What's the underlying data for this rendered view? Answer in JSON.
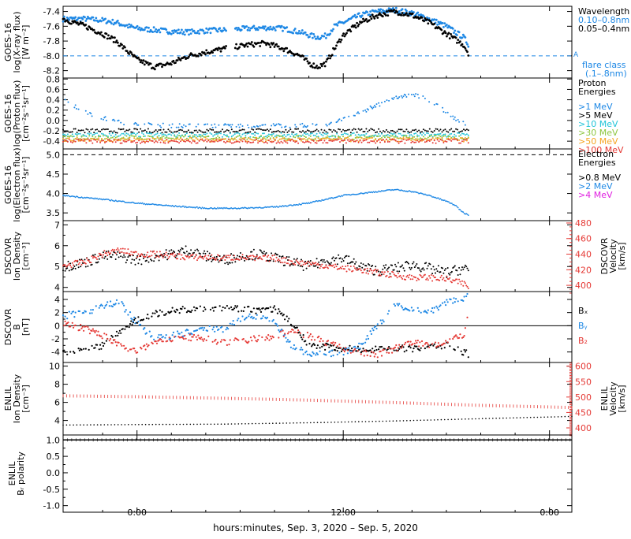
{
  "figure": {
    "xaxis_title": "hours:minutes, Sep.  3, 2020 – Sep.  5, 2020",
    "x_ticks": [
      {
        "label": "0:00",
        "hour": 0
      },
      {
        "label": "12:00",
        "hour": 12
      },
      {
        "label": "0:00",
        "hour": 24
      }
    ],
    "x_range_hours": [
      -4.3,
      25.3
    ]
  },
  "panels": [
    {
      "id": "xray",
      "ylabel": [
        "GOES-16",
        "log(X-ray flux)",
        "[W m⁻²]"
      ],
      "ylim": [
        -8.3,
        -7.33
      ],
      "yticks": [
        "-7.4",
        "-7.6",
        "-7.8",
        "-8.0",
        "-8.2"
      ],
      "yvals": [
        -7.4,
        -7.6,
        -7.8,
        -8.0,
        -8.2
      ],
      "legend_title": [
        "Wavelength"
      ],
      "legend": [
        {
          "text": "0.10–0.8nm",
          "color": "#1e88e5"
        },
        {
          "text": "0.05–0.4nm",
          "color": "#000000"
        }
      ],
      "extra_text": [
        {
          "text": "flare class",
          "color": "#1e88e5"
        },
        {
          "text": "(.1–.8nm)",
          "color": "#1e88e5"
        }
      ],
      "marker": {
        "text": "A",
        "color": "#1e88e5"
      }
    },
    {
      "id": "proton",
      "ylabel": [
        "GOES-16",
        "log(Proton flux)",
        "[cm⁻²s⁻¹sr⁻¹]"
      ],
      "ylim": [
        -0.55,
        0.82
      ],
      "yticks": [
        "0.8",
        "0.6",
        "0.4",
        "0.2",
        "0.0",
        "-0.2",
        "-0.4"
      ],
      "yvals": [
        0.8,
        0.6,
        0.4,
        0.2,
        0.0,
        -0.2,
        -0.4
      ],
      "legend_title": [
        "Proton",
        "Energies"
      ],
      "legend": [
        {
          "text": ">1 MeV",
          "color": "#1e88e5"
        },
        {
          "text": ">5 MeV",
          "color": "#000000"
        },
        {
          "text": ">10 MeV",
          "color": "#22c4d8"
        },
        {
          "text": ">30 MeV",
          "color": "#8cc63f"
        },
        {
          "text": ">50 MeV",
          "color": "#f5a623"
        },
        {
          "text": ">100 MeV",
          "color": "#e53935"
        }
      ]
    },
    {
      "id": "electron",
      "ylabel": [
        "GOES-16",
        "log(Electron flux)",
        "[cm⁻²s⁻¹sr⁻¹]"
      ],
      "ylim": [
        3.3,
        5.15
      ],
      "yticks": [
        "5.0",
        "4.5",
        "4.0",
        "3.5"
      ],
      "yvals": [
        5.0,
        4.5,
        4.0,
        3.5
      ],
      "legend_title": [
        "Electron",
        "Energies"
      ],
      "legend": [
        {
          "text": ">0.8 MeV",
          "color": "#000000"
        },
        {
          "text": ">2 MeV",
          "color": "#1e88e5"
        },
        {
          "text": ">4 MeV",
          "color": "#e020e0"
        }
      ]
    },
    {
      "id": "dscovr_density",
      "ylabel": [
        "DSCOVR",
        "Ion Density",
        "[cm⁻³]"
      ],
      "ylim": [
        3.8,
        7.2
      ],
      "yticks": [
        "7",
        "6",
        "5",
        "4"
      ],
      "yvals": [
        7,
        6,
        5,
        4
      ],
      "right_ylabel": [
        "DSCOVR",
        "Velocity",
        "[km/s]"
      ],
      "right_ylim": [
        392,
        483
      ],
      "right_yticks": [
        "480",
        "460",
        "440",
        "420",
        "400"
      ],
      "right_yvals": [
        480,
        460,
        440,
        420,
        400
      ]
    },
    {
      "id": "dscovr_b",
      "ylabel": [
        "DSCOVR",
        "B",
        "[nT]"
      ],
      "ylim": [
        -5.6,
        5.2
      ],
      "yticks": [
        "4",
        "2",
        "0",
        "-2",
        "-4"
      ],
      "yvals": [
        4,
        2,
        0,
        -2,
        -4
      ],
      "legend": [
        {
          "text": "Bₓ",
          "color": "#000000"
        },
        {
          "text": "Bᵧ",
          "color": "#1e88e5"
        },
        {
          "text": "B₂",
          "color": "#e53935"
        }
      ]
    },
    {
      "id": "enlil_density",
      "ylabel": [
        "ENLIL",
        "Ion Density",
        "[cm⁻³]"
      ],
      "ylim": [
        2.4,
        10.4
      ],
      "yticks": [
        "10",
        "8",
        "6",
        "4"
      ],
      "yvals": [
        10,
        8,
        6,
        4
      ],
      "right_ylabel": [
        "ENLIL",
        "Velocity",
        "[km/s]"
      ],
      "right_ylim": [
        377,
        612
      ],
      "right_yticks": [
        "600",
        "550",
        "500",
        "450",
        "400"
      ],
      "right_yvals": [
        600,
        550,
        500,
        450,
        400
      ]
    },
    {
      "id": "enlil_polarity",
      "ylabel": [
        "ENLIL",
        "Bᵣ polarity"
      ],
      "ylim": [
        -1.2,
        1.15
      ],
      "yticks": [
        "1.0",
        "0.5",
        "0.0",
        "-0.5",
        "-1.0"
      ],
      "yvals": [
        1.0,
        0.5,
        0.0,
        -0.5,
        -1.0
      ]
    }
  ],
  "chart_data": [
    {
      "type": "scatter",
      "panel": "xray",
      "x_unit": "hours",
      "series": [
        {
          "name": "0.10–0.8nm",
          "color": "#1e88e5",
          "x": [
            -4.3,
            -3,
            -2,
            -1.2,
            -0.5,
            0,
            1,
            2,
            3,
            4,
            5.2,
            null,
            5.7,
            6.5,
            7.5,
            8.5,
            9.5,
            10,
            10.5,
            11,
            11.5,
            12,
            13,
            14,
            15,
            16,
            17,
            18,
            19,
            19.3
          ],
          "y": [
            -7.5,
            -7.5,
            -7.52,
            -7.55,
            -7.6,
            -7.63,
            -7.65,
            -7.67,
            -7.68,
            -7.66,
            -7.65,
            null,
            -7.64,
            -7.63,
            -7.62,
            -7.63,
            -7.68,
            -7.72,
            -7.75,
            -7.73,
            -7.6,
            -7.55,
            -7.45,
            -7.4,
            -7.38,
            -7.42,
            -7.5,
            -7.6,
            -7.75,
            -7.85
          ]
        },
        {
          "name": "0.05–0.4nm",
          "color": "#000000",
          "x": [
            -4.3,
            -3,
            -2,
            -1.2,
            -0.5,
            0,
            1,
            2,
            3,
            4,
            5.2,
            null,
            5.7,
            6.5,
            7.5,
            8.5,
            9.5,
            10,
            10.5,
            11,
            11.5,
            12,
            13,
            14,
            15,
            16,
            17,
            18,
            19,
            19.3
          ],
          "y": [
            -7.5,
            -7.6,
            -7.7,
            -7.8,
            -7.95,
            -8.05,
            -8.15,
            -8.1,
            -8.0,
            -7.95,
            -7.9,
            null,
            -7.88,
            -7.85,
            -7.83,
            -7.9,
            -8.0,
            -8.1,
            -8.15,
            -8.1,
            -7.9,
            -7.72,
            -7.55,
            -7.45,
            -7.4,
            -7.45,
            -7.55,
            -7.7,
            -7.85,
            -7.97
          ]
        }
      ],
      "ref_lines": [
        {
          "y": -8.0,
          "color": "#1e88e5",
          "style": "dashed"
        }
      ]
    },
    {
      "type": "scatter",
      "panel": "proton",
      "x_unit": "hours",
      "series": [
        {
          "name": ">1 MeV",
          "color": "#1e88e5",
          "x": [
            -4.3,
            -3.5,
            -2.5,
            -1.5,
            0,
            2,
            4,
            6,
            8,
            10,
            11,
            12,
            13,
            14,
            15,
            16,
            17,
            18,
            19,
            19.3
          ],
          "y": [
            0.4,
            0.25,
            0.1,
            0.0,
            -0.08,
            -0.1,
            -0.1,
            -0.1,
            -0.1,
            -0.1,
            -0.08,
            0.05,
            0.15,
            0.3,
            0.45,
            0.5,
            0.4,
            0.15,
            -0.05,
            -0.15
          ]
        },
        {
          "name": ">5 MeV",
          "color": "#000000",
          "x": [
            -4.3,
            0,
            5,
            10,
            15,
            19.3
          ],
          "y": [
            -0.2,
            -0.2,
            -0.2,
            -0.2,
            -0.2,
            -0.2
          ]
        },
        {
          "name": ">10 MeV",
          "color": "#22c4d8",
          "x": [
            -4.3,
            0,
            5,
            10,
            15,
            19.3
          ],
          "y": [
            -0.28,
            -0.28,
            -0.28,
            -0.28,
            -0.28,
            -0.28
          ]
        },
        {
          "name": ">30 MeV",
          "color": "#8cc63f",
          "x": [
            -4.3,
            0,
            5,
            10,
            15,
            19.3
          ],
          "y": [
            -0.33,
            -0.33,
            -0.33,
            -0.33,
            -0.33,
            -0.33
          ]
        },
        {
          "name": ">50 MeV",
          "color": "#f5a623",
          "x": [
            -4.3,
            0,
            5,
            10,
            15,
            19.3
          ],
          "y": [
            -0.37,
            -0.37,
            -0.37,
            -0.37,
            -0.37,
            -0.37
          ]
        },
        {
          "name": ">100 MeV",
          "color": "#e53935",
          "x": [
            -4.3,
            0,
            5,
            10,
            15,
            19.3
          ],
          "y": [
            -0.4,
            -0.4,
            -0.4,
            -0.4,
            -0.4,
            -0.4
          ]
        }
      ]
    },
    {
      "type": "scatter",
      "panel": "electron",
      "x_unit": "hours",
      "series": [
        {
          "name": ">2 MeV",
          "color": "#1e88e5",
          "x": [
            -4.3,
            -2,
            0,
            2,
            4,
            6,
            8,
            10,
            12,
            14,
            15,
            16,
            17,
            18,
            18.5,
            19,
            19.3
          ],
          "y": [
            3.95,
            3.85,
            3.75,
            3.68,
            3.62,
            3.62,
            3.65,
            3.75,
            3.95,
            4.05,
            4.1,
            4.05,
            3.95,
            3.8,
            3.7,
            3.5,
            3.45
          ]
        }
      ],
      "ref_lines": [
        {
          "y": 5.0,
          "color": "#000000",
          "style": "dashed"
        }
      ]
    },
    {
      "type": "scatter",
      "panel": "dscovr_density",
      "x_unit": "hours",
      "series": [
        {
          "name": "Ion Density",
          "color": "#000000",
          "axis": "left",
          "x": [
            -4.3,
            -3,
            -2,
            -1,
            0,
            1,
            2,
            3,
            4,
            5,
            6,
            7,
            8,
            9,
            10,
            11,
            12,
            13,
            14,
            15,
            16,
            17,
            18,
            19,
            19.3
          ],
          "y": [
            5,
            5.2,
            5.5,
            5.5,
            5.3,
            5.5,
            5.6,
            5.8,
            5.5,
            5.3,
            5.5,
            5.6,
            5.4,
            5.2,
            5.0,
            5.3,
            5.4,
            5.0,
            4.8,
            4.9,
            5.1,
            4.9,
            4.7,
            4.9,
            4.8
          ]
        },
        {
          "name": "Velocity",
          "color": "#e53935",
          "axis": "right",
          "x": [
            -4.3,
            -3,
            -2,
            -1,
            0,
            1,
            2,
            3,
            4,
            5,
            6,
            7,
            8,
            9,
            10,
            11,
            12,
            13,
            14,
            15,
            16,
            17,
            18,
            19,
            19.3
          ],
          "y": [
            425,
            430,
            440,
            445,
            440,
            440,
            438,
            436,
            436,
            435,
            436,
            434,
            435,
            430,
            428,
            425,
            422,
            420,
            416,
            413,
            410,
            410,
            408,
            402,
            398
          ]
        }
      ]
    },
    {
      "type": "scatter",
      "panel": "dscovr_b",
      "x_unit": "hours",
      "series": [
        {
          "name": "Bₓ",
          "color": "#000000",
          "x": [
            -4.3,
            -3,
            -2,
            -1,
            0,
            1,
            2,
            3,
            4,
            5,
            6,
            7,
            8,
            9,
            10,
            11,
            12,
            13,
            14,
            15,
            16,
            17,
            18,
            19,
            19.3
          ],
          "y": [
            -4,
            -3.5,
            -3,
            -1,
            0.8,
            1.8,
            2.3,
            2.5,
            2.7,
            2.8,
            2.6,
            2.3,
            2.6,
            0.5,
            -3,
            -3.2,
            -3.5,
            -3.6,
            -3.6,
            -3.4,
            -3.6,
            -3.2,
            -3,
            -4,
            -4.4
          ]
        },
        {
          "name": "Bᵧ",
          "color": "#1e88e5",
          "x": [
            -4.3,
            -3,
            -2,
            -1,
            0,
            1,
            2,
            3,
            4,
            5,
            6,
            7,
            8,
            9,
            10,
            11,
            12,
            13,
            14,
            15,
            16,
            17,
            18,
            19,
            19.3
          ],
          "y": [
            1.5,
            2,
            3,
            3.5,
            0.5,
            -2,
            -1.5,
            -1,
            -0.5,
            -0.5,
            1,
            1.5,
            0.5,
            -3,
            -4.4,
            -4.3,
            -4,
            -3,
            0,
            3,
            2.5,
            2,
            3.5,
            4.2,
            4.5
          ]
        },
        {
          "name": "B₂",
          "color": "#e53935",
          "x": [
            -4.3,
            -3,
            -2,
            -1,
            0,
            1,
            2,
            3,
            4,
            5,
            6,
            7,
            8,
            9,
            10,
            11,
            12,
            13,
            14,
            15,
            16,
            17,
            18,
            19,
            19.3
          ],
          "y": [
            0.3,
            -0.5,
            -1.5,
            -3,
            -4,
            -2.5,
            -2,
            -1.8,
            -2,
            -2.5,
            -2.3,
            -2,
            -1.6,
            -0.8,
            -1.5,
            -2.5,
            -3.5,
            -4,
            -4.4,
            -3.5,
            -2.5,
            -3,
            -2.5,
            -1.5,
            2
          ]
        }
      ],
      "ref_lines": [
        {
          "y": 0,
          "color": "#000000",
          "style": "solid"
        }
      ]
    },
    {
      "type": "scatter",
      "panel": "enlil_density",
      "x_unit": "hours",
      "series": [
        {
          "name": "Ion Density",
          "color": "#000000",
          "axis": "left",
          "x": [
            -4.3,
            0,
            5,
            10,
            15,
            20,
            25.3
          ],
          "y": [
            3.5,
            3.55,
            3.6,
            3.75,
            3.95,
            4.2,
            4.45
          ]
        },
        {
          "name": "Velocity",
          "color": "#e53935",
          "axis": "right",
          "x": [
            -4.3,
            0,
            5,
            10,
            15,
            20,
            25.3
          ],
          "y": [
            504,
            501,
            496,
            490,
            482,
            473,
            466
          ]
        }
      ]
    },
    {
      "type": "line",
      "panel": "enlil_polarity",
      "x_unit": "hours",
      "series": [
        {
          "name": "Bᵣ polarity",
          "color": "#000000",
          "x": [
            -4.3,
            25.3
          ],
          "y": [
            1.0,
            1.0
          ]
        }
      ]
    }
  ]
}
